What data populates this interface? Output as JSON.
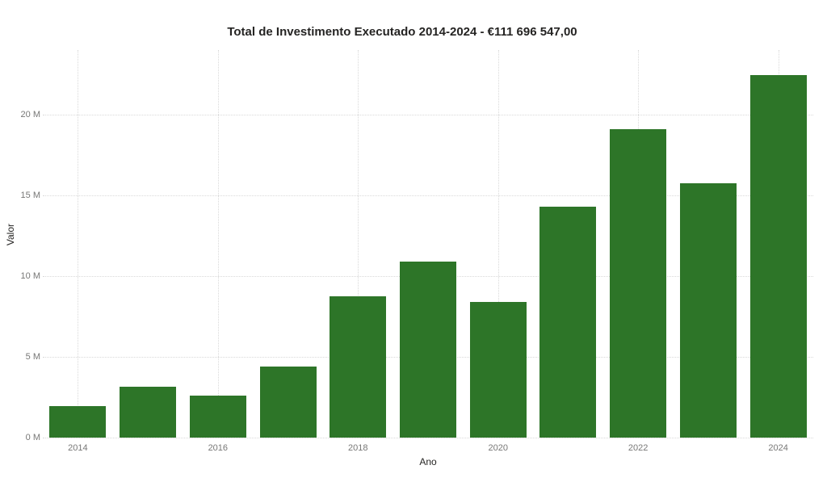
{
  "chart_data": {
    "type": "bar",
    "title": "Total de Investimento Executado 2014-2024 - €111 696 547,00",
    "total_eur": "€111 696 547,00",
    "xlabel": "Ano",
    "ylabel": "Valor",
    "categories": [
      "2014",
      "2015",
      "2016",
      "2017",
      "2018",
      "2019",
      "2020",
      "2021",
      "2022",
      "2023",
      "2024"
    ],
    "values_millions": [
      1.95,
      3.15,
      2.6,
      4.4,
      8.75,
      10.9,
      8.4,
      14.3,
      19.1,
      15.75,
      22.45
    ],
    "ylim": [
      0,
      24
    ],
    "yticks": [
      {
        "value": 0,
        "label": "0 M"
      },
      {
        "value": 5,
        "label": "5 M"
      },
      {
        "value": 10,
        "label": "10 M"
      },
      {
        "value": 15,
        "label": "15 M"
      },
      {
        "value": 20,
        "label": "20 M"
      }
    ],
    "xtick_labels": [
      "2014",
      "2016",
      "2018",
      "2020",
      "2022",
      "2024"
    ],
    "xtick_indices": [
      0,
      2,
      4,
      6,
      8,
      10
    ],
    "grid_style": "dotted",
    "legend": "none",
    "colors": {
      "bar": "#2d7528",
      "grid": "#d9d9d9",
      "tick_text": "#777776",
      "title_text": "#252423",
      "axis_label_text": "#252423",
      "background": "#ffffff"
    }
  }
}
